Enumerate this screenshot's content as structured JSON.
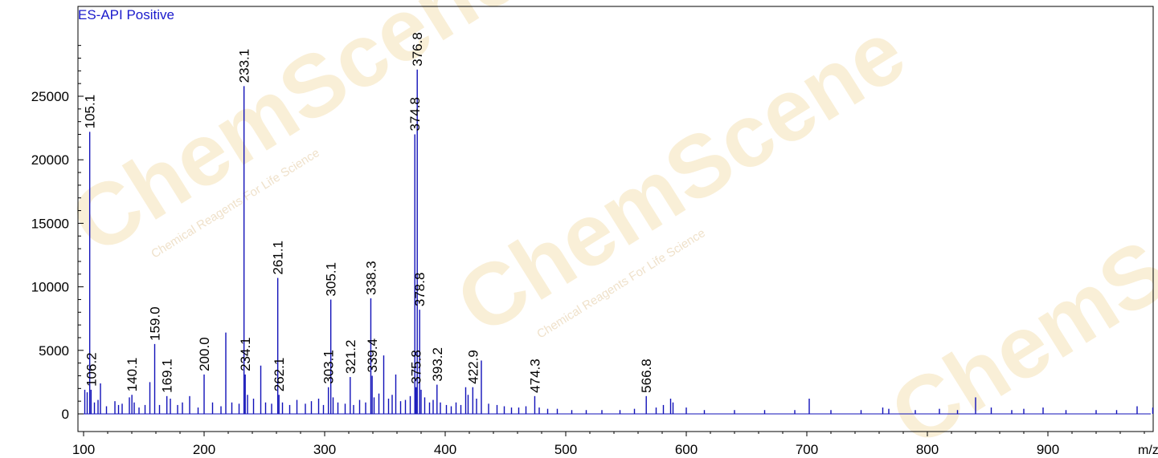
{
  "watermark": {
    "brand": "ChemScene",
    "tagline": "Chemical Reagents For Life Science"
  },
  "chart_data": {
    "type": "bar",
    "title": "ES-API Positive",
    "xlabel": "m/z",
    "ylabel": "",
    "xlim": [
      100,
      990
    ],
    "ylim": [
      -1500,
      30000
    ],
    "x_ticks": [
      100,
      200,
      300,
      400,
      500,
      600,
      700,
      800,
      900
    ],
    "y_ticks": [
      0,
      5000,
      10000,
      15000,
      20000,
      25000
    ],
    "grid": false,
    "color": "#1010b8",
    "labeled_peaks": [
      {
        "x": 105.1,
        "y": 22200,
        "label": "105.1"
      },
      {
        "x": 106.2,
        "y": 1900,
        "label": "106.2"
      },
      {
        "x": 140.1,
        "y": 1500,
        "label": "140.1"
      },
      {
        "x": 159.0,
        "y": 5500,
        "label": "159.0"
      },
      {
        "x": 169.1,
        "y": 1400,
        "label": "169.1"
      },
      {
        "x": 200.0,
        "y": 3100,
        "label": "200.0"
      },
      {
        "x": 233.1,
        "y": 25800,
        "label": "233.1"
      },
      {
        "x": 234.1,
        "y": 3100,
        "label": "234.1"
      },
      {
        "x": 261.1,
        "y": 10700,
        "label": "261.1"
      },
      {
        "x": 262.1,
        "y": 1500,
        "label": "262.1"
      },
      {
        "x": 303.1,
        "y": 2100,
        "label": "303.1"
      },
      {
        "x": 305.1,
        "y": 9000,
        "label": "305.1"
      },
      {
        "x": 321.2,
        "y": 2900,
        "label": "321.2"
      },
      {
        "x": 338.3,
        "y": 9100,
        "label": "338.3"
      },
      {
        "x": 339.4,
        "y": 3000,
        "label": "339.4"
      },
      {
        "x": 374.8,
        "y": 22000,
        "label": "374.8"
      },
      {
        "x": 375.8,
        "y": 2100,
        "label": "375.8"
      },
      {
        "x": 376.8,
        "y": 27100,
        "label": "376.8"
      },
      {
        "x": 378.8,
        "y": 8200,
        "label": "378.8"
      },
      {
        "x": 393.2,
        "y": 2300,
        "label": "393.2"
      },
      {
        "x": 422.9,
        "y": 2100,
        "label": "422.9"
      },
      {
        "x": 474.3,
        "y": 1400,
        "label": "474.3"
      },
      {
        "x": 566.8,
        "y": 1400,
        "label": "566.8"
      }
    ],
    "minor_peaks": [
      {
        "x": 101.0,
        "y": 1900
      },
      {
        "x": 103.0,
        "y": 1700
      },
      {
        "x": 109.0,
        "y": 900
      },
      {
        "x": 112.0,
        "y": 1100
      },
      {
        "x": 114.0,
        "y": 2400
      },
      {
        "x": 119.0,
        "y": 600
      },
      {
        "x": 126.0,
        "y": 1000
      },
      {
        "x": 129.0,
        "y": 700
      },
      {
        "x": 132.0,
        "y": 800
      },
      {
        "x": 138.0,
        "y": 1300
      },
      {
        "x": 142.0,
        "y": 900
      },
      {
        "x": 146.0,
        "y": 500
      },
      {
        "x": 151.0,
        "y": 700
      },
      {
        "x": 155.0,
        "y": 2500
      },
      {
        "x": 163.0,
        "y": 700
      },
      {
        "x": 172.0,
        "y": 1200
      },
      {
        "x": 178.0,
        "y": 700
      },
      {
        "x": 182.0,
        "y": 900
      },
      {
        "x": 188.0,
        "y": 1400
      },
      {
        "x": 195.0,
        "y": 500
      },
      {
        "x": 207.0,
        "y": 900
      },
      {
        "x": 214.0,
        "y": 600
      },
      {
        "x": 218.0,
        "y": 6400
      },
      {
        "x": 223.0,
        "y": 900
      },
      {
        "x": 229.0,
        "y": 800
      },
      {
        "x": 236.0,
        "y": 1500
      },
      {
        "x": 241.0,
        "y": 1200
      },
      {
        "x": 247.0,
        "y": 3800
      },
      {
        "x": 251.0,
        "y": 900
      },
      {
        "x": 256.0,
        "y": 800
      },
      {
        "x": 265.0,
        "y": 900
      },
      {
        "x": 271.0,
        "y": 700
      },
      {
        "x": 277.0,
        "y": 1100
      },
      {
        "x": 284.0,
        "y": 800
      },
      {
        "x": 289.0,
        "y": 1000
      },
      {
        "x": 295.0,
        "y": 1200
      },
      {
        "x": 299.0,
        "y": 700
      },
      {
        "x": 307.0,
        "y": 1300
      },
      {
        "x": 311.0,
        "y": 900
      },
      {
        "x": 317.0,
        "y": 800
      },
      {
        "x": 324.0,
        "y": 700
      },
      {
        "x": 329.0,
        "y": 1100
      },
      {
        "x": 334.0,
        "y": 900
      },
      {
        "x": 341.0,
        "y": 1300
      },
      {
        "x": 345.0,
        "y": 1600
      },
      {
        "x": 349.0,
        "y": 4600
      },
      {
        "x": 353.0,
        "y": 1200
      },
      {
        "x": 356.0,
        "y": 1500
      },
      {
        "x": 359.0,
        "y": 3100
      },
      {
        "x": 363.0,
        "y": 1000
      },
      {
        "x": 367.0,
        "y": 1100
      },
      {
        "x": 371.0,
        "y": 1400
      },
      {
        "x": 380.0,
        "y": 1900
      },
      {
        "x": 383.0,
        "y": 1300
      },
      {
        "x": 387.0,
        "y": 900
      },
      {
        "x": 390.0,
        "y": 1100
      },
      {
        "x": 396.0,
        "y": 900
      },
      {
        "x": 401.0,
        "y": 700
      },
      {
        "x": 405.0,
        "y": 600
      },
      {
        "x": 409.0,
        "y": 900
      },
      {
        "x": 413.0,
        "y": 700
      },
      {
        "x": 417.0,
        "y": 2100
      },
      {
        "x": 419.0,
        "y": 1500
      },
      {
        "x": 426.0,
        "y": 1200
      },
      {
        "x": 430.0,
        "y": 4200
      },
      {
        "x": 436.0,
        "y": 800
      },
      {
        "x": 443.0,
        "y": 700
      },
      {
        "x": 449.0,
        "y": 600
      },
      {
        "x": 455.0,
        "y": 500
      },
      {
        "x": 461.0,
        "y": 500
      },
      {
        "x": 467.0,
        "y": 600
      },
      {
        "x": 478.0,
        "y": 500
      },
      {
        "x": 485.0,
        "y": 400
      },
      {
        "x": 493.0,
        "y": 400
      },
      {
        "x": 505.0,
        "y": 300
      },
      {
        "x": 517.0,
        "y": 300
      },
      {
        "x": 530.0,
        "y": 300
      },
      {
        "x": 545.0,
        "y": 300
      },
      {
        "x": 557.0,
        "y": 400
      },
      {
        "x": 575.0,
        "y": 500
      },
      {
        "x": 581.0,
        "y": 700
      },
      {
        "x": 587.0,
        "y": 1200
      },
      {
        "x": 589.0,
        "y": 900
      },
      {
        "x": 600.0,
        "y": 500
      },
      {
        "x": 615.0,
        "y": 300
      },
      {
        "x": 640.0,
        "y": 300
      },
      {
        "x": 665.0,
        "y": 300
      },
      {
        "x": 690.0,
        "y": 300
      },
      {
        "x": 702.0,
        "y": 1200
      },
      {
        "x": 720.0,
        "y": 300
      },
      {
        "x": 745.0,
        "y": 300
      },
      {
        "x": 763.0,
        "y": 500
      },
      {
        "x": 768.0,
        "y": 400
      },
      {
        "x": 790.0,
        "y": 300
      },
      {
        "x": 810.0,
        "y": 400
      },
      {
        "x": 825.0,
        "y": 300
      },
      {
        "x": 840.0,
        "y": 1300
      },
      {
        "x": 853.0,
        "y": 500
      },
      {
        "x": 870.0,
        "y": 300
      },
      {
        "x": 880.0,
        "y": 400
      },
      {
        "x": 896.0,
        "y": 500
      },
      {
        "x": 915.0,
        "y": 300
      },
      {
        "x": 940.0,
        "y": 300
      },
      {
        "x": 957.0,
        "y": 300
      },
      {
        "x": 974.0,
        "y": 600
      },
      {
        "x": 987.0,
        "y": 500
      }
    ]
  }
}
